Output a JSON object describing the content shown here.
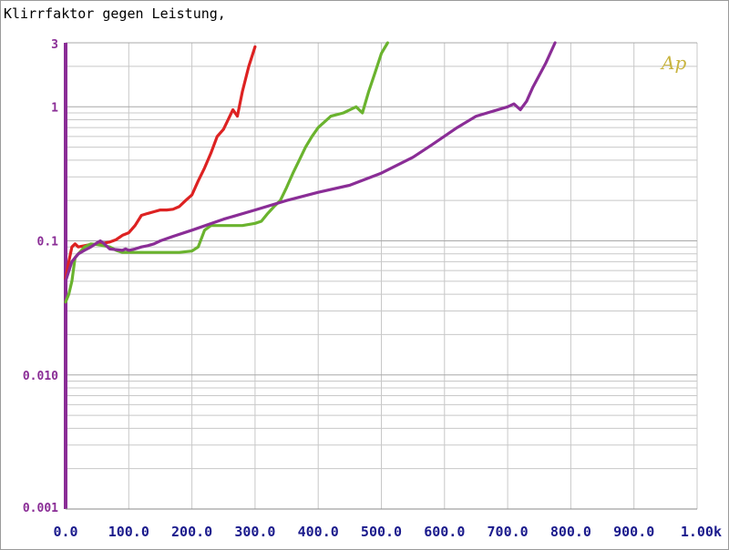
{
  "chart_data": {
    "type": "line",
    "title": "Klirrfaktor gegen Leistung,",
    "xlabel": "",
    "ylabel": "",
    "xlim": [
      0,
      1000
    ],
    "ylim": [
      0.001,
      3
    ],
    "y_scale": "log",
    "grid": true,
    "x_ticks": [
      {
        "value": 0,
        "label": "0.0"
      },
      {
        "value": 100,
        "label": "100.0"
      },
      {
        "value": 200,
        "label": "200.0"
      },
      {
        "value": 300,
        "label": "300.0"
      },
      {
        "value": 400,
        "label": "400.0"
      },
      {
        "value": 500,
        "label": "500.0"
      },
      {
        "value": 600,
        "label": "600.0"
      },
      {
        "value": 700,
        "label": "700.0"
      },
      {
        "value": 800,
        "label": "800.0"
      },
      {
        "value": 900,
        "label": "900.0"
      },
      {
        "value": 1000,
        "label": "1.00k"
      }
    ],
    "y_ticks": [
      {
        "value": 3,
        "label": "3"
      },
      {
        "value": 1,
        "label": "1"
      },
      {
        "value": 0.1,
        "label": "0.1"
      },
      {
        "value": 0.01,
        "label": "0.010"
      },
      {
        "value": 0.001,
        "label": "0.001"
      }
    ],
    "logo": "Ap",
    "series": [
      {
        "color": "#dd2222",
        "points": [
          [
            0,
            0.052
          ],
          [
            5,
            0.07
          ],
          [
            10,
            0.09
          ],
          [
            15,
            0.095
          ],
          [
            20,
            0.09
          ],
          [
            30,
            0.092
          ],
          [
            40,
            0.094
          ],
          [
            50,
            0.095
          ],
          [
            60,
            0.096
          ],
          [
            70,
            0.098
          ],
          [
            80,
            0.102
          ],
          [
            90,
            0.11
          ],
          [
            100,
            0.115
          ],
          [
            110,
            0.13
          ],
          [
            120,
            0.155
          ],
          [
            130,
            0.16
          ],
          [
            140,
            0.165
          ],
          [
            150,
            0.17
          ],
          [
            160,
            0.17
          ],
          [
            170,
            0.172
          ],
          [
            180,
            0.18
          ],
          [
            190,
            0.2
          ],
          [
            200,
            0.22
          ],
          [
            210,
            0.28
          ],
          [
            220,
            0.35
          ],
          [
            230,
            0.45
          ],
          [
            240,
            0.6
          ],
          [
            250,
            0.68
          ],
          [
            260,
            0.85
          ],
          [
            265,
            0.95
          ],
          [
            272,
            0.85
          ],
          [
            280,
            1.3
          ],
          [
            290,
            2.0
          ],
          [
            300,
            2.8
          ]
        ]
      },
      {
        "color": "#6ab32e",
        "points": [
          [
            0,
            0.035
          ],
          [
            5,
            0.04
          ],
          [
            10,
            0.05
          ],
          [
            15,
            0.075
          ],
          [
            20,
            0.08
          ],
          [
            30,
            0.09
          ],
          [
            40,
            0.095
          ],
          [
            50,
            0.094
          ],
          [
            60,
            0.092
          ],
          [
            70,
            0.09
          ],
          [
            80,
            0.085
          ],
          [
            90,
            0.082
          ],
          [
            100,
            0.082
          ],
          [
            150,
            0.082
          ],
          [
            180,
            0.082
          ],
          [
            200,
            0.084
          ],
          [
            210,
            0.09
          ],
          [
            220,
            0.12
          ],
          [
            230,
            0.13
          ],
          [
            250,
            0.13
          ],
          [
            280,
            0.13
          ],
          [
            300,
            0.135
          ],
          [
            310,
            0.14
          ],
          [
            320,
            0.16
          ],
          [
            330,
            0.18
          ],
          [
            340,
            0.2
          ],
          [
            350,
            0.25
          ],
          [
            360,
            0.32
          ],
          [
            370,
            0.4
          ],
          [
            380,
            0.5
          ],
          [
            390,
            0.6
          ],
          [
            400,
            0.7
          ],
          [
            420,
            0.85
          ],
          [
            440,
            0.9
          ],
          [
            460,
            1.0
          ],
          [
            470,
            0.9
          ],
          [
            480,
            1.3
          ],
          [
            490,
            1.8
          ],
          [
            500,
            2.5
          ],
          [
            510,
            3.0
          ]
        ]
      },
      {
        "color": "#8a2d96",
        "points": [
          [
            0,
            0.05
          ],
          [
            10,
            0.07
          ],
          [
            20,
            0.08
          ],
          [
            30,
            0.085
          ],
          [
            40,
            0.09
          ],
          [
            50,
            0.097
          ],
          [
            55,
            0.1
          ],
          [
            60,
            0.096
          ],
          [
            70,
            0.087
          ],
          [
            80,
            0.086
          ],
          [
            90,
            0.085
          ],
          [
            95,
            0.087
          ],
          [
            100,
            0.085
          ],
          [
            110,
            0.087
          ],
          [
            120,
            0.09
          ],
          [
            130,
            0.092
          ],
          [
            140,
            0.095
          ],
          [
            150,
            0.1
          ],
          [
            170,
            0.108
          ],
          [
            200,
            0.12
          ],
          [
            250,
            0.145
          ],
          [
            300,
            0.17
          ],
          [
            350,
            0.2
          ],
          [
            400,
            0.23
          ],
          [
            450,
            0.26
          ],
          [
            500,
            0.32
          ],
          [
            550,
            0.42
          ],
          [
            580,
            0.52
          ],
          [
            620,
            0.7
          ],
          [
            650,
            0.85
          ],
          [
            700,
            1.0
          ],
          [
            710,
            1.05
          ],
          [
            720,
            0.95
          ],
          [
            730,
            1.1
          ],
          [
            740,
            1.4
          ],
          [
            760,
            2.1
          ],
          [
            775,
            3.0
          ]
        ]
      }
    ]
  }
}
